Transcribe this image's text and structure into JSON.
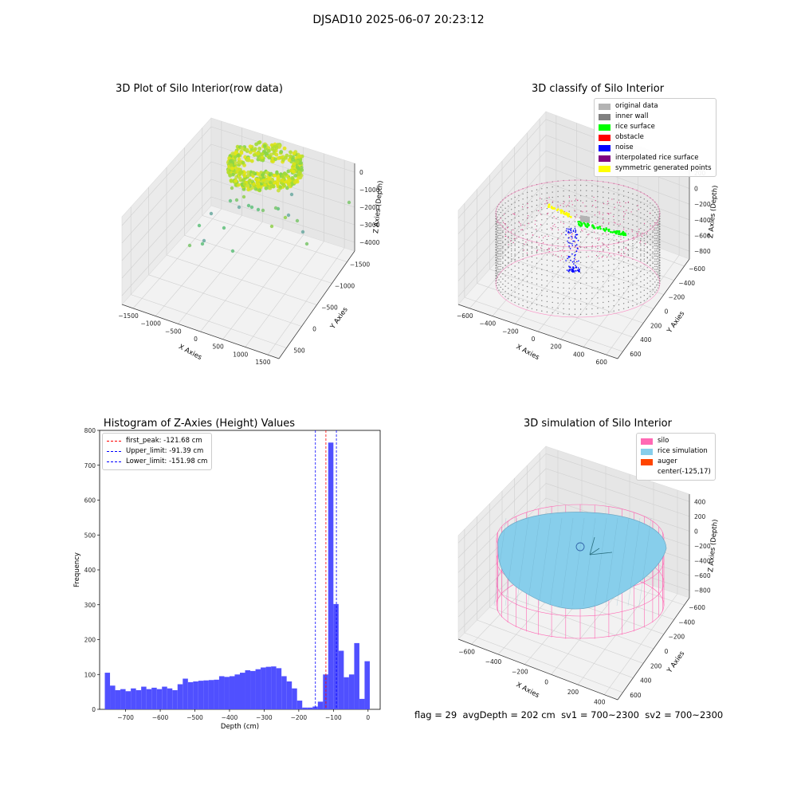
{
  "figure_title": "DJSAD10 2025-06-07 20:23:12",
  "footer": {
    "flag": "flag = 29",
    "avg_depth": "avgDepth = 202 cm",
    "sv1": "sv1 = 700~2300",
    "sv2": "sv2 = 700~2300"
  },
  "colors": {
    "original_data": "#b3b3b3",
    "inner_wall": "#808080",
    "rice_surface": "#00ff00",
    "obstacle": "#ff0000",
    "noise": "#0000ff",
    "interpolated_rice_surface": "#800080",
    "symmetric_generated_points": "#ffff00",
    "silo": "#ff69b4",
    "rice_simulation": "#87ceeb",
    "auger": "#ff4500",
    "histogram_bar": "#5050ff"
  },
  "chart_data": [
    {
      "type": "scatter",
      "projection": "3d",
      "title": "3D Plot of Silo Interior(row data)",
      "xlabel": "X Axies",
      "ylabel": "Y Axies",
      "zlabel": "Z Axies (Depth)",
      "x_ticks": [
        "−1500",
        "−1000",
        "−500",
        "0",
        "500",
        "1000",
        "1500"
      ],
      "y_ticks": [
        "500",
        "0",
        "−500",
        "−1000",
        "−1500"
      ],
      "z_ticks": [
        "0",
        "−1000",
        "−2000",
        "−3000",
        "−4000"
      ],
      "colormap": "viridis",
      "grid": true
    },
    {
      "type": "scatter",
      "projection": "3d",
      "title": "3D classify of Silo Interior",
      "xlabel": "X Axies",
      "ylabel": "Y Axies",
      "zlabel": "Z Axies (Depth)",
      "x_ticks": [
        "−600",
        "−400",
        "−200",
        "0",
        "200",
        "400",
        "600"
      ],
      "y_ticks": [
        "600",
        "400",
        "200",
        "0",
        "−200",
        "−400",
        "−600"
      ],
      "z_ticks": [
        "200",
        "0",
        "−200",
        "−400",
        "−600",
        "−800"
      ],
      "legend": [
        "original data",
        "inner wall",
        "rice surface",
        "obstacle",
        "noise",
        "interpolated rice surface",
        "symmetric generated points"
      ],
      "legend_position": "top-right",
      "grid": true
    },
    {
      "type": "bar",
      "title": "Histogram of Z-Axies (Height) Values",
      "xlabel": "Depth (cm)",
      "ylabel": "Frequency",
      "xlim": [
        -775,
        35
      ],
      "ylim": [
        0,
        800
      ],
      "x_ticks": [
        "−700",
        "−600",
        "−500",
        "−400",
        "−300",
        "−200",
        "−100",
        "0"
      ],
      "y_ticks": [
        "0",
        "100",
        "200",
        "300",
        "400",
        "500",
        "600",
        "700",
        "800"
      ],
      "bin_start": -760,
      "bin_width": 15,
      "values": [
        105,
        68,
        55,
        58,
        52,
        60,
        55,
        65,
        58,
        62,
        58,
        65,
        60,
        55,
        72,
        88,
        78,
        80,
        82,
        83,
        84,
        85,
        95,
        93,
        95,
        100,
        105,
        112,
        110,
        115,
        120,
        122,
        123,
        118,
        95,
        80,
        60,
        25,
        5,
        5,
        8,
        22,
        100,
        765,
        302,
        168,
        92,
        100,
        190,
        30,
        138
      ],
      "lines": [
        {
          "label": "first_peak: -121.68 cm",
          "x": -121.68,
          "color": "#ff0000"
        },
        {
          "label": "Upper_limit: -91.39 cm",
          "x": -91.39,
          "color": "#0000ff"
        },
        {
          "label": "Lower_limit: -151.98 cm",
          "x": -151.98,
          "color": "#0000ff"
        }
      ],
      "legend_position": "top-left"
    },
    {
      "type": "surface",
      "projection": "3d",
      "title": "3D simulation of Silo Interior",
      "xlabel": "X Axies",
      "ylabel": "Y Axies",
      "zlabel": "Z Axies (Depth)",
      "x_ticks": [
        "−600",
        "−400",
        "−200",
        "0",
        "200",
        "400"
      ],
      "y_ticks": [
        "600",
        "400",
        "200",
        "0",
        "−200",
        "−400",
        "−600"
      ],
      "z_ticks": [
        "400",
        "200",
        "0",
        "−200",
        "−400",
        "−600",
        "−800"
      ],
      "legend": [
        "silo",
        "rice simulation",
        "auger",
        "center(-125,17)"
      ],
      "legend_position": "top-right",
      "grid": true
    }
  ]
}
